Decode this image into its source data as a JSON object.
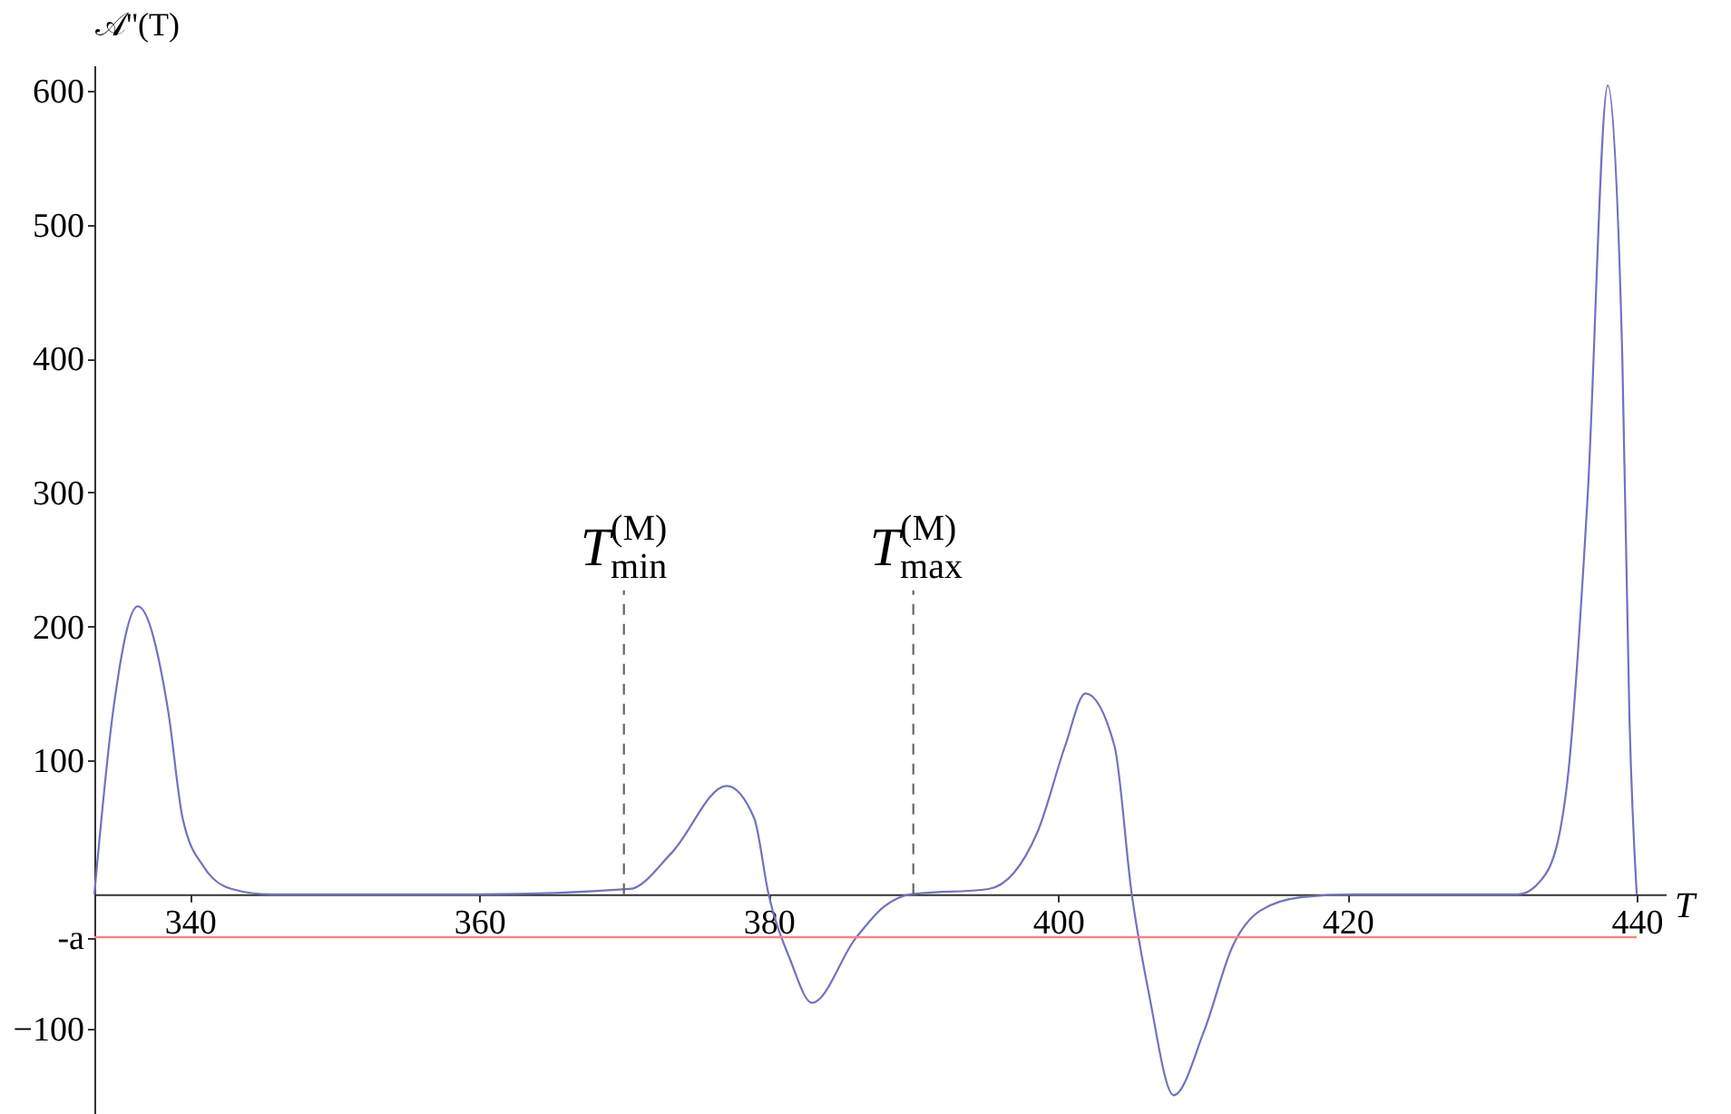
{
  "chart_data": {
    "type": "line",
    "xlabel": "T",
    "ylabel": "𝒜''(T)",
    "xlim": [
      333.4,
      442
    ],
    "ylim": [
      -164,
      619
    ],
    "xticks": [
      340,
      360,
      380,
      400,
      420,
      440
    ],
    "yticks": [
      {
        "value": -100,
        "label": "−100"
      },
      {
        "value": -32,
        "label": "-a"
      },
      100,
      200,
      300,
      400,
      500,
      600
    ],
    "series": [
      {
        "color": "#7272bf",
        "x": [
          333.4,
          334.7,
          336.4,
          338.5,
          339.5,
          341,
          342.9,
          345.6,
          360,
          370.4,
          373.3,
          377.1,
          379.0,
          380,
          381.5,
          383.0,
          386,
          388,
          389.8,
          395.2,
          398.6,
          400.5,
          401.9,
          403.9,
          405.1,
          406.3,
          408.0,
          410.1,
          412.1,
          414.0,
          416.9,
          420.4,
          431.8,
          433.7,
          435.2,
          436.6,
          438.0,
          439.0,
          439.5,
          440
        ],
        "values": [
          0,
          137,
          215,
          137,
          57,
          20,
          4,
          0,
          0,
          4,
          31,
          81,
          57,
          0,
          -49,
          -81,
          -33,
          -9,
          0,
          4,
          47,
          111,
          150,
          111,
          0,
          -75,
          -150,
          -102,
          -38,
          -12,
          -2,
          0,
          0,
          15,
          84,
          296,
          604,
          402,
          130,
          0
        ]
      },
      {
        "color": "#666666",
        "line_style": "dashed",
        "x": [
          370,
          370
        ],
        "values": [
          0,
          227
        ]
      },
      {
        "color": "#666666",
        "line_style": "dashed",
        "x": [
          390,
          390
        ],
        "values": [
          0,
          227
        ]
      },
      {
        "color": "#ff7f7f",
        "x": [
          333.4,
          440
        ],
        "values": [
          -32,
          -32
        ]
      }
    ],
    "annotations": [
      {
        "text": "T$^{(M)}$$_{min}$",
        "x": 370,
        "y": 227
      },
      {
        "text": "T$^{(M)}$$_{max}$",
        "x": 390,
        "y": 227
      }
    ]
  }
}
